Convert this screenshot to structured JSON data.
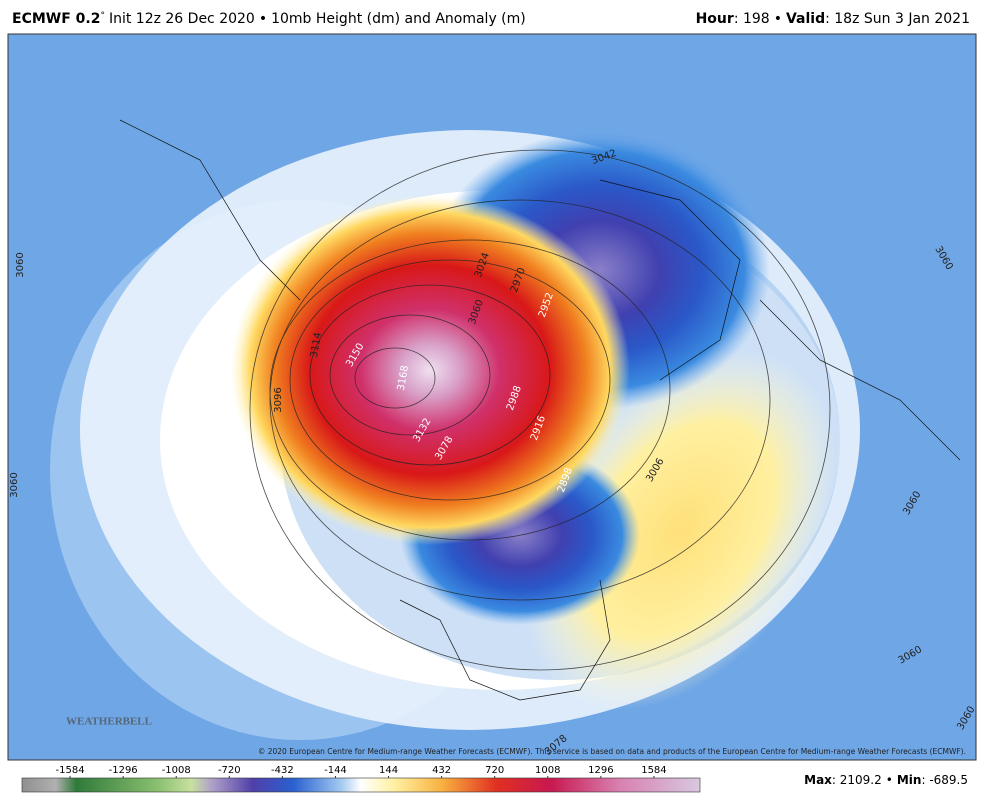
{
  "header": {
    "model": "ECMWF 0.2",
    "degree": "°",
    "init": "Init 12z 26 Dec 2020",
    "separator": "•",
    "product": "10mb Height (dm) and Anomaly (m)",
    "hour_label": "Hour",
    "hour": ": 198",
    "valid_label": "Valid",
    "valid": ": 18z Sun 3 Jan 2021"
  },
  "contour_labels": [
    "3060",
    "3060",
    "3096",
    "3114",
    "3150",
    "3168",
    "3132",
    "3078",
    "3024",
    "2970",
    "2952",
    "3060",
    "2988",
    "2916",
    "2898",
    "3006",
    "3042",
    "3060",
    "3060",
    "3060",
    "3060",
    "3078"
  ],
  "logo": "WEATHERBELL",
  "copyright": "© 2020 European Centre for Medium-range Weather Forecasts (ECMWF). This service is based on data and products of the European Centre for Medium-range Weather Forecasts (ECMWF).",
  "colorbar": {
    "ticks": [
      -1584,
      -1296,
      -1008,
      -720,
      -432,
      -144,
      144,
      432,
      720,
      1008,
      1296,
      1584
    ]
  },
  "stats": {
    "max_label": "Max",
    "max": 2109.2,
    "separator": "•",
    "min_label": "Min",
    "min": -689.5
  }
}
